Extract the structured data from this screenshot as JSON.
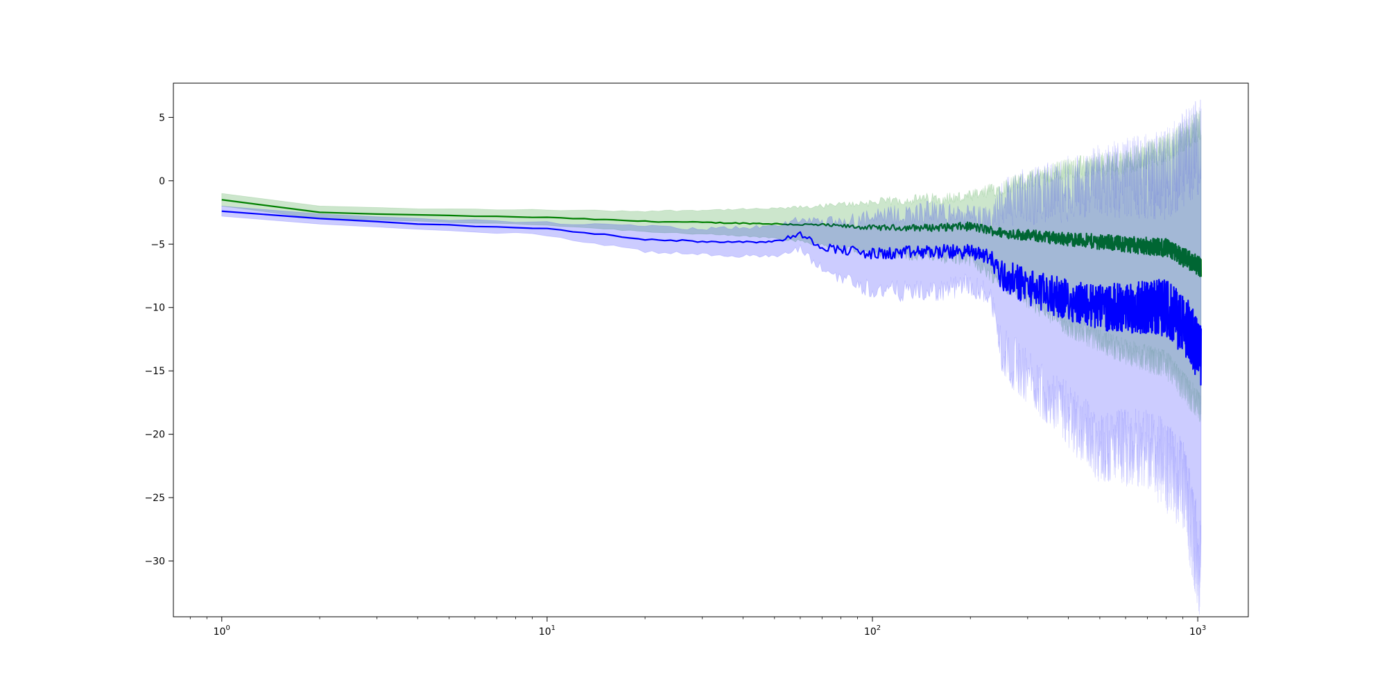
{
  "chart_data": {
    "type": "line",
    "title": "",
    "xlabel": "",
    "ylabel": "",
    "x_scale": "log",
    "xlim": [
      0.71,
      1430
    ],
    "ylim": [
      -34.4,
      7.7
    ],
    "grid": false,
    "legend": "none",
    "x_major_ticks": [
      {
        "value": 1,
        "base": "10",
        "exp": "0"
      },
      {
        "value": 10,
        "base": "10",
        "exp": "1"
      },
      {
        "value": 100,
        "base": "10",
        "exp": "2"
      },
      {
        "value": 1000,
        "base": "10",
        "exp": "3"
      }
    ],
    "y_ticks": [
      {
        "value": 5,
        "label": "5"
      },
      {
        "value": 0,
        "label": "0"
      },
      {
        "value": -5,
        "label": "−5"
      },
      {
        "value": -10,
        "label": "−10"
      },
      {
        "value": -15,
        "label": "−15"
      },
      {
        "value": -20,
        "label": "−20"
      },
      {
        "value": -25,
        "label": "−25"
      },
      {
        "value": -30,
        "label": "−30"
      }
    ],
    "x_range": [
      1,
      1024
    ],
    "series": [
      {
        "color": "#008000",
        "band_color": "#008000",
        "band_opacity": 0.2,
        "mean_points": [
          [
            1,
            -1.5
          ],
          [
            2,
            -2.5
          ],
          [
            4,
            -2.7
          ],
          [
            10,
            -2.9
          ],
          [
            20,
            -3.2
          ],
          [
            50,
            -3.4
          ],
          [
            70,
            -3.5
          ],
          [
            100,
            -3.7
          ],
          [
            150,
            -3.7
          ],
          [
            200,
            -3.6
          ],
          [
            250,
            -4.1
          ],
          [
            400,
            -4.6
          ],
          [
            600,
            -5.0
          ],
          [
            800,
            -5.3
          ],
          [
            1024,
            -6.8
          ]
        ],
        "lower_points": [
          [
            1,
            -2.0
          ],
          [
            2,
            -3.0
          ],
          [
            4,
            -3.2
          ],
          [
            10,
            -3.5
          ],
          [
            20,
            -4.0
          ],
          [
            50,
            -4.5
          ],
          [
            70,
            -5.0
          ],
          [
            100,
            -5.7
          ],
          [
            150,
            -6.0
          ],
          [
            200,
            -6.2
          ],
          [
            250,
            -8.0
          ],
          [
            400,
            -11.5
          ],
          [
            600,
            -13.5
          ],
          [
            800,
            -14.5
          ],
          [
            1024,
            -18.0
          ]
        ],
        "upper_points": [
          [
            1,
            -1.0
          ],
          [
            2,
            -2.0
          ],
          [
            4,
            -2.2
          ],
          [
            10,
            -2.3
          ],
          [
            20,
            -2.4
          ],
          [
            50,
            -2.2
          ],
          [
            70,
            -2.0
          ],
          [
            100,
            -1.7
          ],
          [
            150,
            -1.4
          ],
          [
            200,
            -1.3
          ],
          [
            250,
            -0.5
          ],
          [
            400,
            1.0
          ],
          [
            600,
            1.5
          ],
          [
            800,
            2.5
          ],
          [
            1024,
            4.5
          ]
        ],
        "noise": [
          [
            1,
            0.0
          ],
          [
            50,
            0.05
          ],
          [
            100,
            0.2
          ],
          [
            250,
            0.4
          ],
          [
            500,
            0.6
          ],
          [
            1024,
            0.8
          ]
        ]
      },
      {
        "color": "#0000ff",
        "band_color": "#0000ff",
        "band_opacity": 0.2,
        "mean_points": [
          [
            1,
            -2.4
          ],
          [
            2,
            -3.0
          ],
          [
            4,
            -3.4
          ],
          [
            10,
            -3.8
          ],
          [
            20,
            -4.6
          ],
          [
            30,
            -4.8
          ],
          [
            50,
            -4.8
          ],
          [
            60,
            -4.2
          ],
          [
            70,
            -5.2
          ],
          [
            100,
            -5.8
          ],
          [
            150,
            -5.6
          ],
          [
            200,
            -5.6
          ],
          [
            230,
            -6.0
          ],
          [
            250,
            -7.5
          ],
          [
            350,
            -9.0
          ],
          [
            500,
            -10.0
          ],
          [
            800,
            -10.0
          ],
          [
            950,
            -12.0
          ],
          [
            1024,
            -14.0
          ]
        ],
        "lower_points": [
          [
            1,
            -2.8
          ],
          [
            2,
            -3.4
          ],
          [
            4,
            -3.8
          ],
          [
            10,
            -4.3
          ],
          [
            20,
            -5.6
          ],
          [
            30,
            -5.8
          ],
          [
            50,
            -6.0
          ],
          [
            60,
            -5.4
          ],
          [
            70,
            -7.0
          ],
          [
            100,
            -8.6
          ],
          [
            150,
            -8.8
          ],
          [
            200,
            -8.2
          ],
          [
            230,
            -9.0
          ],
          [
            250,
            -13.5
          ],
          [
            350,
            -17.0
          ],
          [
            500,
            -21.0
          ],
          [
            700,
            -21.0
          ],
          [
            900,
            -24.0
          ],
          [
            1024,
            -31.0
          ]
        ],
        "upper_points": [
          [
            1,
            -2.0
          ],
          [
            2,
            -2.6
          ],
          [
            4,
            -3.0
          ],
          [
            10,
            -3.3
          ],
          [
            20,
            -3.6
          ],
          [
            30,
            -3.8
          ],
          [
            50,
            -3.6
          ],
          [
            60,
            -3.0
          ],
          [
            70,
            -3.4
          ],
          [
            100,
            -3.0
          ],
          [
            150,
            -2.4
          ],
          [
            200,
            -2.8
          ],
          [
            230,
            -3.0
          ],
          [
            250,
            -1.5
          ],
          [
            350,
            -1.0
          ],
          [
            500,
            0.0
          ],
          [
            800,
            0.5
          ],
          [
            1024,
            3.0
          ]
        ],
        "noise": [
          [
            1,
            0.0
          ],
          [
            50,
            0.1
          ],
          [
            100,
            0.5
          ],
          [
            230,
            0.6
          ],
          [
            250,
            1.3
          ],
          [
            500,
            1.8
          ],
          [
            1024,
            2.5
          ]
        ]
      }
    ]
  }
}
